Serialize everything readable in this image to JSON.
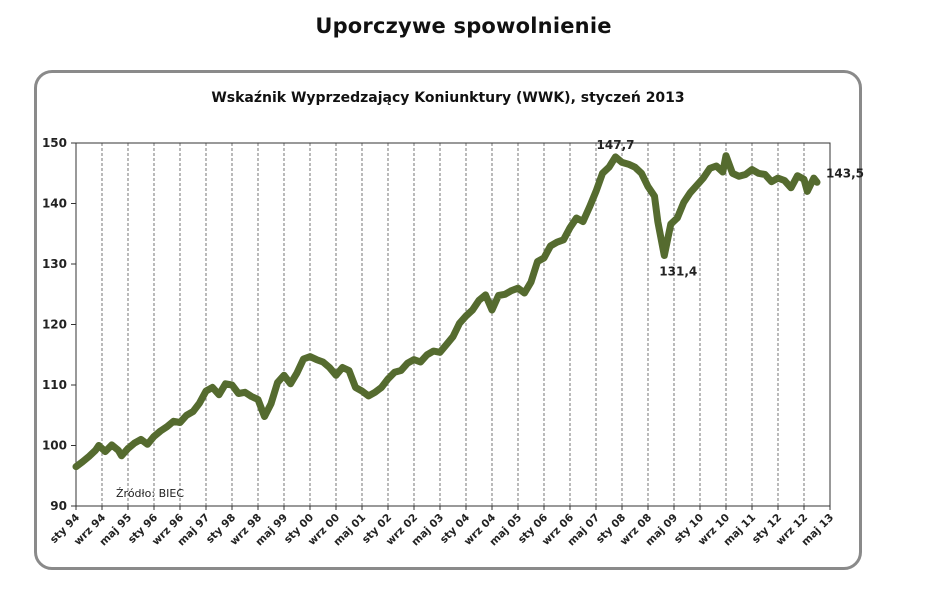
{
  "page_title": "Uporczywe spowolnienie",
  "chart_data": {
    "type": "line",
    "title": "Wskaźnik Wyprzedzający Koniunktury (WWK), styczeń 2013",
    "source": "Źródło: BIEC",
    "ylim": [
      90,
      150
    ],
    "yticks": [
      "90",
      "100",
      "110",
      "120",
      "130",
      "140",
      "150"
    ],
    "x_range": [
      "1994-01",
      "2013-05"
    ],
    "grid": "vertical dashed lines at each x tick",
    "line_color": "#556b2f",
    "xtick_labels": [
      "sty 94",
      "wrz 94",
      "maj 95",
      "sty 96",
      "wrz 96",
      "maj 97",
      "sty 98",
      "wrz 98",
      "maj 99",
      "sty 00",
      "wrz 00",
      "maj 01",
      "sty 02",
      "wrz 02",
      "maj 03",
      "sty 04",
      "wrz 04",
      "maj 05",
      "sty 06",
      "wrz 06",
      "maj 07",
      "sty 08",
      "wrz 08",
      "maj 09",
      "sty 10",
      "wrz 10",
      "maj 11",
      "sty 12",
      "wrz 12",
      "maj 13"
    ],
    "annotations": [
      {
        "text": "147,7",
        "x": "2007-11",
        "y": 147.7
      },
      {
        "text": "131,4",
        "x": "2009-02",
        "y": 131.4
      },
      {
        "text": "143,5",
        "x": "2013-01",
        "y": 143.5
      }
    ],
    "series": [
      {
        "points": [
          [
            "1994-01",
            96.5
          ],
          [
            "1994-03",
            97.3
          ],
          [
            "1994-05",
            98.2
          ],
          [
            "1994-07",
            99.2
          ],
          [
            "1994-08",
            100.0
          ],
          [
            "1994-10",
            99.0
          ],
          [
            "1994-12",
            100.1
          ],
          [
            "1995-02",
            99.2
          ],
          [
            "1995-03",
            98.3
          ],
          [
            "1995-05",
            99.5
          ],
          [
            "1995-07",
            100.4
          ],
          [
            "1995-09",
            101.0
          ],
          [
            "1995-11",
            100.2
          ],
          [
            "1996-01",
            101.5
          ],
          [
            "1996-03",
            102.4
          ],
          [
            "1996-05",
            103.1
          ],
          [
            "1996-07",
            104.0
          ],
          [
            "1996-09",
            103.8
          ],
          [
            "1996-11",
            105.0
          ],
          [
            "1997-01",
            105.6
          ],
          [
            "1997-03",
            107.0
          ],
          [
            "1997-05",
            109.0
          ],
          [
            "1997-07",
            109.6
          ],
          [
            "1997-09",
            108.4
          ],
          [
            "1997-11",
            110.2
          ],
          [
            "1998-01",
            110.0
          ],
          [
            "1998-03",
            108.6
          ],
          [
            "1998-05",
            108.8
          ],
          [
            "1998-07",
            108.1
          ],
          [
            "1998-09",
            107.6
          ],
          [
            "1998-11",
            104.8
          ],
          [
            "1999-01",
            106.9
          ],
          [
            "1999-03",
            110.4
          ],
          [
            "1999-05",
            111.6
          ],
          [
            "1999-07",
            110.2
          ],
          [
            "1999-09",
            112.0
          ],
          [
            "1999-11",
            114.3
          ],
          [
            "2000-01",
            114.7
          ],
          [
            "2000-03",
            114.2
          ],
          [
            "2000-05",
            113.8
          ],
          [
            "2000-07",
            112.9
          ],
          [
            "2000-09",
            111.6
          ],
          [
            "2000-11",
            112.9
          ],
          [
            "2001-01",
            112.4
          ],
          [
            "2001-03",
            109.6
          ],
          [
            "2001-05",
            109.0
          ],
          [
            "2001-07",
            108.2
          ],
          [
            "2001-09",
            108.8
          ],
          [
            "2001-11",
            109.6
          ],
          [
            "2002-01",
            111.0
          ],
          [
            "2002-03",
            112.1
          ],
          [
            "2002-05",
            112.4
          ],
          [
            "2002-07",
            113.6
          ],
          [
            "2002-09",
            114.2
          ],
          [
            "2002-11",
            113.8
          ],
          [
            "2003-01",
            115.0
          ],
          [
            "2003-03",
            115.6
          ],
          [
            "2003-05",
            115.4
          ],
          [
            "2003-07",
            116.7
          ],
          [
            "2003-09",
            118.0
          ],
          [
            "2003-11",
            120.2
          ],
          [
            "2004-01",
            121.4
          ],
          [
            "2004-03",
            122.4
          ],
          [
            "2004-05",
            124.0
          ],
          [
            "2004-07",
            124.9
          ],
          [
            "2004-09",
            122.4
          ],
          [
            "2004-11",
            124.8
          ],
          [
            "2005-01",
            125.0
          ],
          [
            "2005-03",
            125.6
          ],
          [
            "2005-05",
            126.0
          ],
          [
            "2005-07",
            125.2
          ],
          [
            "2005-09",
            127.0
          ],
          [
            "2005-11",
            130.4
          ],
          [
            "2006-01",
            131.0
          ],
          [
            "2006-03",
            133.0
          ],
          [
            "2006-05",
            133.6
          ],
          [
            "2006-07",
            134.0
          ],
          [
            "2006-09",
            136.0
          ],
          [
            "2006-11",
            137.6
          ],
          [
            "2007-01",
            137.0
          ],
          [
            "2007-03",
            139.4
          ],
          [
            "2007-05",
            142.0
          ],
          [
            "2007-07",
            145.0
          ],
          [
            "2007-09",
            146.0
          ],
          [
            "2007-11",
            147.7
          ],
          [
            "2008-01",
            146.8
          ],
          [
            "2008-03",
            146.5
          ],
          [
            "2008-05",
            146.0
          ],
          [
            "2008-07",
            145.0
          ],
          [
            "2008-09",
            142.8
          ],
          [
            "2008-11",
            141.2
          ],
          [
            "2008-12",
            137.0
          ],
          [
            "2009-02",
            131.4
          ],
          [
            "2009-04",
            136.6
          ],
          [
            "2009-06",
            137.6
          ],
          [
            "2009-08",
            140.2
          ],
          [
            "2009-10",
            141.8
          ],
          [
            "2009-12",
            143.0
          ],
          [
            "2010-02",
            144.2
          ],
          [
            "2010-04",
            145.8
          ],
          [
            "2010-06",
            146.2
          ],
          [
            "2010-08",
            145.2
          ],
          [
            "2010-09",
            147.9
          ],
          [
            "2010-11",
            145.0
          ],
          [
            "2011-01",
            144.5
          ],
          [
            "2011-03",
            144.8
          ],
          [
            "2011-05",
            145.6
          ],
          [
            "2011-07",
            145.0
          ],
          [
            "2011-09",
            144.8
          ],
          [
            "2011-11",
            143.6
          ],
          [
            "2012-01",
            144.2
          ],
          [
            "2012-03",
            143.8
          ],
          [
            "2012-05",
            142.6
          ],
          [
            "2012-07",
            144.6
          ],
          [
            "2012-09",
            144.0
          ],
          [
            "2012-10",
            142.0
          ],
          [
            "2012-12",
            144.2
          ],
          [
            "2013-01",
            143.5
          ]
        ]
      }
    ]
  }
}
